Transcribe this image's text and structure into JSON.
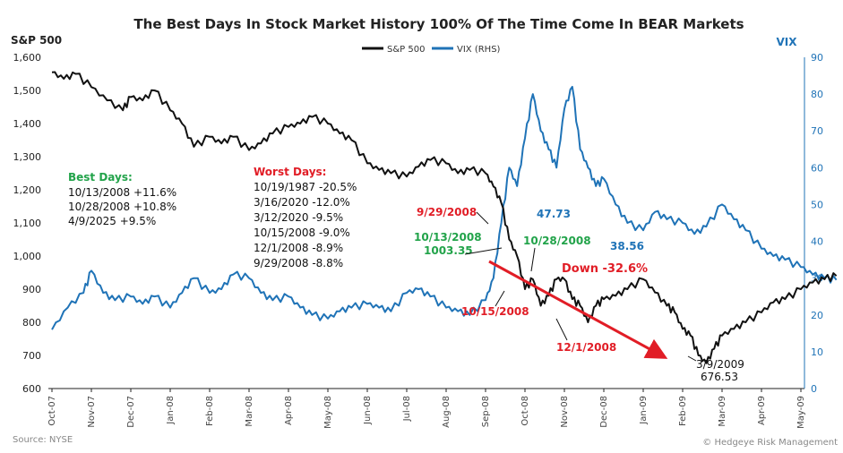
{
  "chart_data": {
    "type": "line",
    "title": "The Best Days In Stock Market History 100% Of The Time Come In BEAR Markets",
    "y_left_label": "S&P 500",
    "y_right_label": "VIX",
    "ylim_left": [
      600,
      1600
    ],
    "ylim_right": [
      0,
      90
    ],
    "yticks_left": [
      "600",
      "700",
      "800",
      "900",
      "1,000",
      "1,100",
      "1,200",
      "1,300",
      "1,400",
      "1,500",
      "1,600"
    ],
    "yticks_right": [
      "0",
      "10",
      "20",
      "30",
      "40",
      "50",
      "60",
      "70",
      "80",
      "90"
    ],
    "xticks": [
      "Oct-07",
      "Nov-07",
      "Dec-07",
      "Jan-08",
      "Feb-08",
      "Mar-08",
      "Apr-08",
      "May-08",
      "Jun-08",
      "Jul-08",
      "Aug-08",
      "Sep-08",
      "Oct-08",
      "Nov-08",
      "Dec-08",
      "Jan-09",
      "Feb-09",
      "Mar-09",
      "Apr-09",
      "May-09"
    ],
    "legend": [
      "S&P 500",
      "VIX (RHS)"
    ],
    "colors": {
      "sp500": "#111111",
      "vix": "#1f73b7",
      "best": "#22a34a",
      "worst": "#e11d26",
      "arrow": "#e11d26"
    },
    "series": [
      {
        "name": "S&P 500",
        "axis": "left",
        "x": [
          0,
          0.3,
          0.6,
          1,
          1.4,
          1.8,
          2,
          2.3,
          2.6,
          3,
          3.3,
          3.6,
          4,
          4.3,
          4.6,
          5,
          5.3,
          5.6,
          6,
          6.3,
          6.6,
          7,
          7.3,
          7.6,
          8,
          8.3,
          8.6,
          9,
          9.3,
          9.6,
          10,
          10.3,
          10.6,
          11,
          11.2,
          11.4,
          11.6,
          11.8,
          12,
          12.2,
          12.4,
          12.6,
          12.8,
          13,
          13.2,
          13.4,
          13.6,
          13.8,
          14,
          14.3,
          14.6,
          15,
          15.3,
          15.6,
          15.8,
          16,
          16.2,
          16.4,
          16.6,
          16.8,
          17,
          17.3,
          17.6,
          18,
          18.3,
          18.6,
          19,
          19.3,
          19.6,
          19.9
        ],
        "y": [
          1555,
          1535,
          1550,
          1510,
          1470,
          1440,
          1480,
          1470,
          1500,
          1440,
          1400,
          1330,
          1360,
          1340,
          1360,
          1320,
          1340,
          1370,
          1390,
          1400,
          1420,
          1400,
          1370,
          1350,
          1280,
          1260,
          1250,
          1240,
          1270,
          1290,
          1280,
          1250,
          1260,
          1250,
          1210,
          1160,
          1050,
          1000,
          900,
          930,
          850,
          880,
          930,
          930,
          870,
          850,
          800,
          850,
          870,
          880,
          900,
          930,
          890,
          850,
          830,
          780,
          760,
          700,
          676.53,
          720,
          760,
          780,
          800,
          830,
          860,
          870,
          900,
          920,
          930,
          940
        ]
      },
      {
        "name": "VIX (RHS)",
        "axis": "right",
        "x": [
          0,
          0.4,
          0.8,
          1,
          1.3,
          1.6,
          2,
          2.3,
          2.6,
          3,
          3.3,
          3.6,
          4,
          4.3,
          4.6,
          5,
          5.3,
          5.6,
          6,
          6.3,
          6.6,
          7,
          7.3,
          7.6,
          8,
          8.3,
          8.6,
          9,
          9.3,
          9.6,
          10,
          10.3,
          10.6,
          11,
          11.2,
          11.4,
          11.6,
          11.8,
          12,
          12.2,
          12.4,
          12.6,
          12.8,
          13,
          13.2,
          13.4,
          13.6,
          13.8,
          14,
          14.3,
          14.6,
          15,
          15.3,
          15.6,
          16,
          16.3,
          16.6,
          17,
          17.3,
          17.6,
          18,
          18.3,
          18.6,
          19,
          19.3,
          19.6,
          19.9
        ],
        "y": [
          16,
          22,
          26,
          32,
          26,
          24,
          25,
          23,
          25,
          22,
          26,
          30,
          26,
          27,
          31,
          30,
          26,
          24,
          25,
          22,
          20,
          19,
          21,
          22,
          23,
          22,
          21,
          26,
          27,
          25,
          22,
          21,
          20,
          24,
          30,
          45,
          60,
          55,
          68,
          80,
          70,
          65,
          60,
          76,
          82,
          65,
          60,
          55,
          57,
          50,
          45,
          43,
          48,
          46,
          45,
          42,
          44,
          50,
          46,
          43,
          38,
          36,
          35,
          33,
          31,
          30,
          29.5
        ]
      }
    ],
    "annotations": {
      "best_days_title": "Best Days:",
      "best_days": [
        "10/13/2008 +11.6%",
        "10/28/2008 +10.8%",
        "4/9/2025 +9.5%"
      ],
      "worst_days_title": "Worst Days:",
      "worst_days": [
        "10/19/1987 -20.5%",
        "3/16/2020 -12.0%",
        "3/12/2020 -9.5%",
        "10/15/2008 -9.0%",
        "12/1/2008 -8.9%",
        "9/29/2008 -8.8%"
      ],
      "point_labels": {
        "sep29": "9/29/2008",
        "oct13": "10/13/2008",
        "oct13_value": "1003.35",
        "oct28": "10/28/2008",
        "oct15": "10/15/2008",
        "dec1": "12/1/2008",
        "mar9": "3/9/2009",
        "mar9_value": "676.53",
        "vix_peak1": "47.73",
        "vix_peak2": "38.56",
        "down": "Down -32.6%"
      }
    }
  },
  "footer": {
    "source": "Source: NYSE",
    "copyright": "© Hedgeye Risk Management"
  }
}
